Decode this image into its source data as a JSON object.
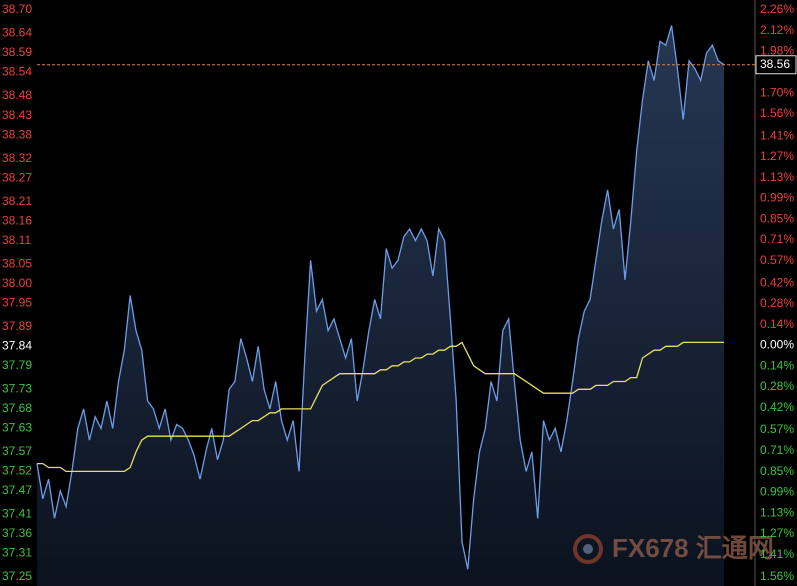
{
  "chart_data": {
    "type": "line",
    "ylim": [
      37.25,
      38.7
    ],
    "yticks": [
      {
        "value": 38.7,
        "label": "38.70"
      },
      38.64,
      38.59,
      38.54,
      38.48,
      38.43,
      38.38,
      38.32,
      38.27,
      38.21,
      38.16,
      38.11,
      38.05,
      {
        "value": 38.0,
        "label": "38.00"
      },
      37.95,
      37.89,
      37.84,
      37.79,
      37.73,
      37.68,
      37.63,
      37.57,
      37.52,
      37.47,
      37.41,
      37.36,
      37.31,
      37.25
    ],
    "y2lim": [
      -1.56,
      2.26
    ],
    "y2ticks": [
      {
        "value": 2.26,
        "label": "2.26%"
      },
      {
        "value": 2.12,
        "label": "2.12%"
      },
      {
        "value": 1.98,
        "label": "1.98%"
      },
      {
        "value": 1.7,
        "label": "1.70%"
      },
      {
        "value": 1.56,
        "label": "1.56%"
      },
      {
        "value": 1.41,
        "label": "1.41%"
      },
      {
        "value": 1.27,
        "label": "1.27%"
      },
      {
        "value": 1.13,
        "label": "1.13%"
      },
      {
        "value": 0.99,
        "label": "0.99%"
      },
      {
        "value": 0.85,
        "label": "0.85%"
      },
      {
        "value": 0.71,
        "label": "0.71%"
      },
      {
        "value": 0.57,
        "label": "0.57%"
      },
      {
        "value": 0.42,
        "label": "0.42%"
      },
      {
        "value": 0.28,
        "label": "0.28%"
      },
      {
        "value": 0.14,
        "label": "0.14%"
      },
      {
        "value": 0,
        "label": "0.00%"
      },
      {
        "value": -0.14,
        "label": "0.14%"
      },
      {
        "value": -0.28,
        "label": "0.28%"
      },
      {
        "value": -0.42,
        "label": "0.42%"
      },
      {
        "value": -0.57,
        "label": "0.57%"
      },
      {
        "value": -0.71,
        "label": "0.71%"
      },
      {
        "value": -0.85,
        "label": "0.85%"
      },
      {
        "value": -0.99,
        "label": "0.99%"
      },
      {
        "value": -1.13,
        "label": "1.13%"
      },
      {
        "value": -1.27,
        "label": "1.27%"
      },
      {
        "value": -1.41,
        "label": "1.41%"
      },
      {
        "value": -1.56,
        "label": "1.56%"
      }
    ],
    "base_value": 37.84,
    "up_color": "#e8413c",
    "down_color": "#3cc43c",
    "flat_color": "#ffffff",
    "last_value": 38.56,
    "watermark": "FX678 汇通网",
    "series": [
      {
        "color": "#6b9eea",
        "fill": true,
        "values": [
          37.54,
          37.45,
          37.5,
          37.4,
          37.47,
          37.43,
          37.52,
          37.63,
          37.68,
          37.6,
          37.66,
          37.63,
          37.7,
          37.63,
          37.75,
          37.83,
          37.97,
          37.88,
          37.83,
          37.7,
          37.68,
          37.63,
          37.68,
          37.6,
          37.64,
          37.63,
          37.6,
          37.56,
          37.5,
          37.57,
          37.63,
          37.55,
          37.6,
          37.73,
          37.75,
          37.86,
          37.81,
          37.75,
          37.84,
          37.73,
          37.68,
          37.75,
          37.65,
          37.6,
          37.65,
          37.52,
          37.81,
          38.06,
          37.93,
          37.96,
          37.88,
          37.91,
          37.86,
          37.81,
          37.86,
          37.7,
          37.78,
          37.88,
          37.96,
          37.91,
          38.09,
          38.04,
          38.06,
          38.12,
          38.14,
          38.11,
          38.14,
          38.11,
          38.02,
          38.14,
          38.11,
          37.91,
          37.7,
          37.34,
          37.27,
          37.45,
          37.57,
          37.63,
          37.75,
          37.7,
          37.88,
          37.91,
          37.75,
          37.6,
          37.52,
          37.57,
          37.4,
          37.65,
          37.6,
          37.63,
          37.57,
          37.65,
          37.75,
          37.86,
          37.93,
          37.96,
          38.06,
          38.16,
          38.24,
          38.14,
          38.19,
          38.01,
          38.16,
          38.34,
          38.47,
          38.57,
          38.52,
          38.62,
          38.61,
          38.66,
          38.55,
          38.42,
          38.57,
          38.55,
          38.52,
          38.59,
          38.61,
          38.57,
          38.56
        ]
      },
      {
        "color": "#e6e05a",
        "fill": false,
        "values": [
          37.54,
          37.54,
          37.53,
          37.53,
          37.53,
          37.52,
          37.52,
          37.52,
          37.52,
          37.52,
          37.52,
          37.52,
          37.52,
          37.52,
          37.52,
          37.52,
          37.53,
          37.57,
          37.6,
          37.61,
          37.61,
          37.61,
          37.61,
          37.61,
          37.61,
          37.61,
          37.61,
          37.61,
          37.61,
          37.61,
          37.61,
          37.61,
          37.61,
          37.61,
          37.62,
          37.63,
          37.64,
          37.65,
          37.65,
          37.66,
          37.67,
          37.67,
          37.68,
          37.68,
          37.68,
          37.68,
          37.68,
          37.68,
          37.71,
          37.74,
          37.75,
          37.76,
          37.77,
          37.77,
          37.77,
          37.77,
          37.77,
          37.77,
          37.77,
          37.78,
          37.78,
          37.79,
          37.79,
          37.8,
          37.8,
          37.81,
          37.81,
          37.82,
          37.82,
          37.83,
          37.83,
          37.84,
          37.84,
          37.85,
          37.82,
          37.79,
          37.78,
          37.77,
          37.77,
          37.77,
          37.77,
          37.77,
          37.77,
          37.76,
          37.75,
          37.74,
          37.73,
          37.72,
          37.72,
          37.72,
          37.72,
          37.72,
          37.72,
          37.73,
          37.73,
          37.73,
          37.74,
          37.74,
          37.74,
          37.75,
          37.75,
          37.75,
          37.76,
          37.76,
          37.81,
          37.82,
          37.83,
          37.83,
          37.84,
          37.84,
          37.84,
          37.85,
          37.85,
          37.85,
          37.85,
          37.85,
          37.85,
          37.85,
          37.85
        ]
      }
    ]
  }
}
